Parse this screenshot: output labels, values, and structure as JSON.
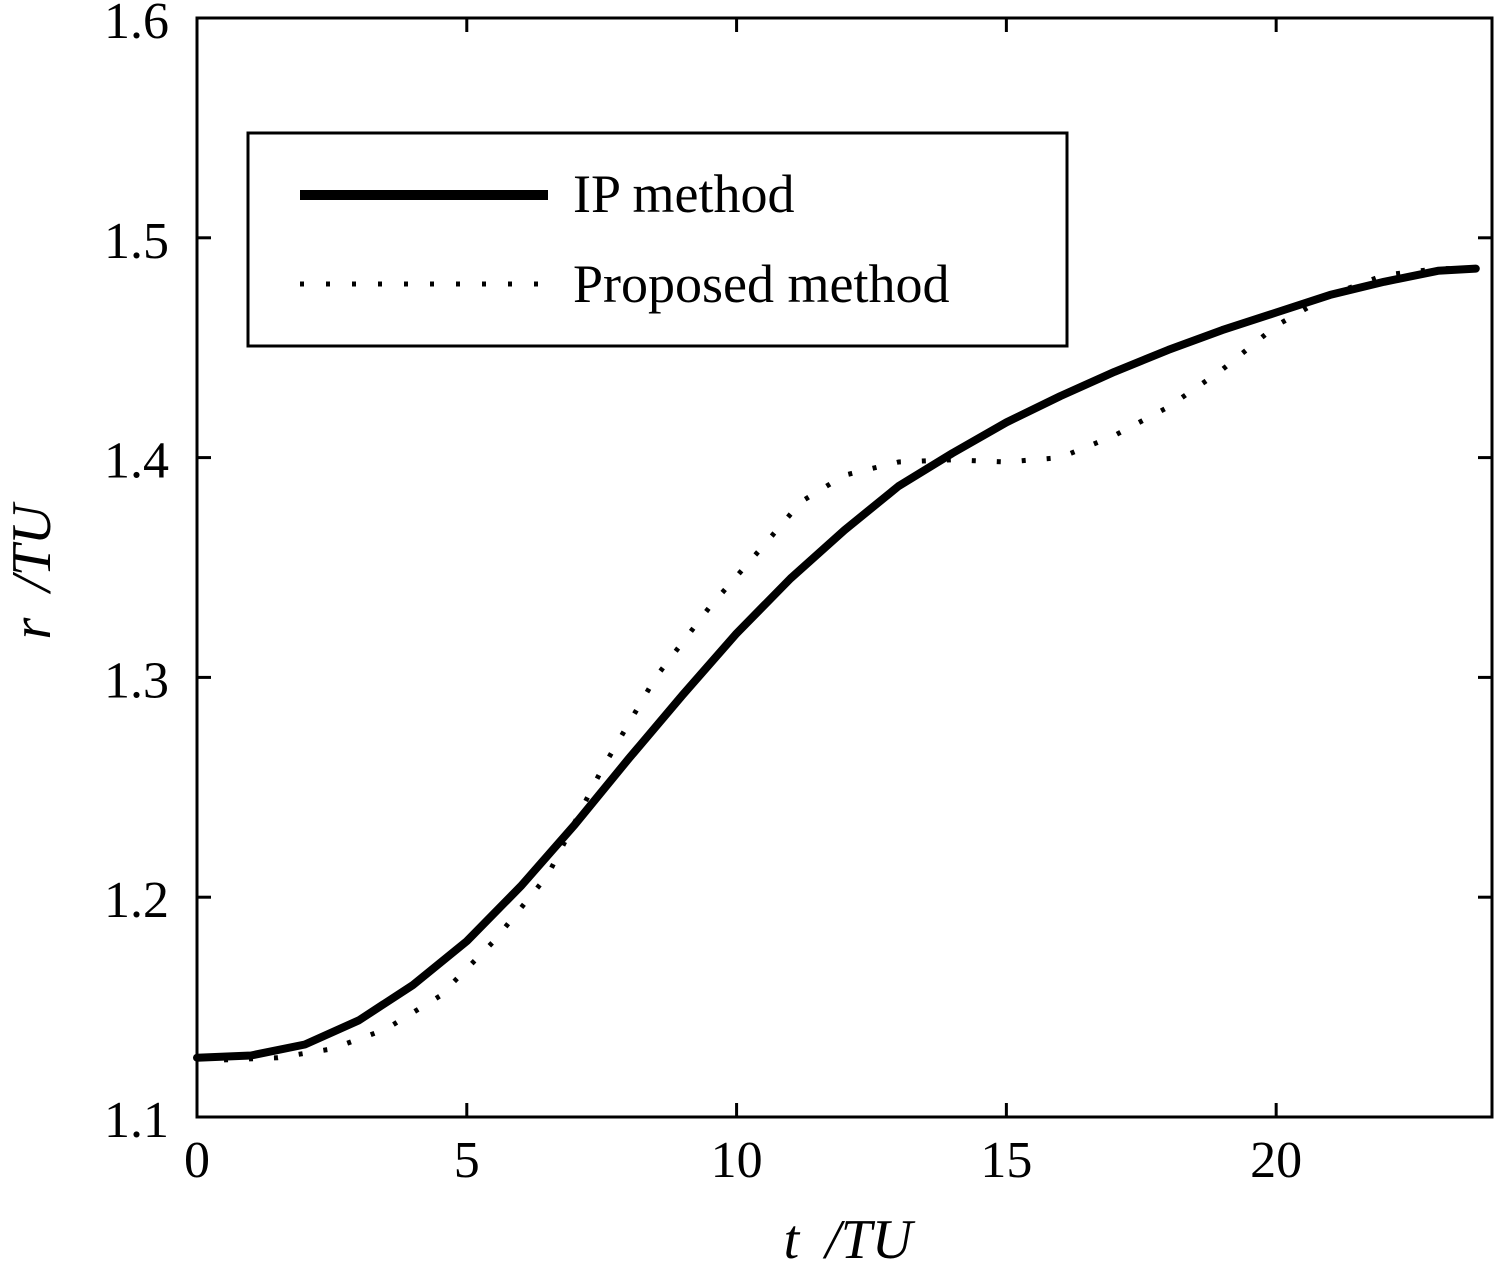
{
  "chart_data": {
    "type": "line",
    "title": "",
    "xlabel_var": "t",
    "xlabel_unit": "/TU",
    "ylabel_var": "r",
    "ylabel_unit": "/TU",
    "xlim": [
      0,
      24
    ],
    "ylim": [
      1.1,
      1.6
    ],
    "xticks": [
      0,
      5,
      10,
      15,
      20
    ],
    "yticks": [
      1.1,
      1.2,
      1.3,
      1.4,
      1.5,
      1.6
    ],
    "xtick_labels": [
      "0",
      "5",
      "10",
      "15",
      "20"
    ],
    "ytick_labels": [
      "1.1",
      "1.2",
      "1.3",
      "1.4",
      "1.5",
      "1.6"
    ],
    "grid": false,
    "legend_position": "upper-left",
    "series": [
      {
        "name": "IP method",
        "style": "solid",
        "color": "#000000",
        "x": [
          0,
          1,
          2,
          3,
          4,
          5,
          6,
          7,
          8,
          9,
          10,
          11,
          12,
          13,
          14,
          15,
          16,
          17,
          18,
          19,
          20,
          21,
          22,
          23,
          23.7
        ],
        "y": [
          1.127,
          1.128,
          1.133,
          1.144,
          1.16,
          1.18,
          1.205,
          1.233,
          1.263,
          1.292,
          1.32,
          1.345,
          1.367,
          1.387,
          1.402,
          1.416,
          1.428,
          1.439,
          1.449,
          1.458,
          1.466,
          1.474,
          1.48,
          1.485,
          1.486
        ]
      },
      {
        "name": "Proposed method",
        "style": "dotted",
        "color": "#000000",
        "x": [
          0.5,
          1.5,
          2.5,
          3.5,
          4.5,
          5.5,
          6.5,
          7.5,
          8.5,
          9.5,
          10.5,
          11.2,
          12,
          13,
          14,
          15,
          16,
          17,
          18,
          19,
          20,
          21,
          22,
          23,
          23.5
        ],
        "y": [
          1.126,
          1.127,
          1.131,
          1.14,
          1.155,
          1.18,
          1.21,
          1.258,
          1.3,
          1.332,
          1.36,
          1.38,
          1.392,
          1.398,
          1.399,
          1.398,
          1.4,
          1.41,
          1.423,
          1.44,
          1.46,
          1.474,
          1.483,
          1.486,
          1.486
        ]
      }
    ]
  }
}
